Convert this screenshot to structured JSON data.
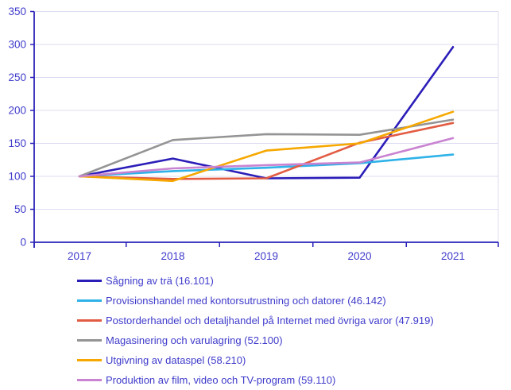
{
  "chart_data": {
    "type": "line",
    "title": "",
    "xlabel": "",
    "ylabel": "",
    "x_categories": [
      "2017",
      "2018",
      "2019",
      "2020",
      "2021"
    ],
    "y_ticks": [
      0,
      50,
      100,
      150,
      200,
      250,
      300,
      350
    ],
    "ylim": [
      0,
      350
    ],
    "grid": true,
    "legend_position": "bottom-left",
    "series": [
      {
        "name": "Sågning av trä (16.101)",
        "color": "#2b1db8",
        "values": [
          100,
          127,
          97,
          98,
          296
        ]
      },
      {
        "name": "Provisionshandel med kontorsutrustning och datorer (46.142)",
        "color": "#2fb2e8",
        "values": [
          100,
          108,
          113,
          120,
          133
        ]
      },
      {
        "name": "Postorderhandel och detaljhandel på Internet med övriga varor (47.919)",
        "color": "#e25c43",
        "values": [
          100,
          96,
          97,
          151,
          181
        ]
      },
      {
        "name": "Magasinering och varulagring (52.100)",
        "color": "#949494",
        "values": [
          100,
          155,
          164,
          163,
          186
        ]
      },
      {
        "name": "Utgivning av dataspel (58.210)",
        "color": "#f6a800",
        "values": [
          100,
          93,
          139,
          150,
          198
        ]
      },
      {
        "name": "Produktion av film, video och TV-program (59.110)",
        "color": "#c983d1",
        "values": [
          100,
          112,
          117,
          121,
          158
        ]
      }
    ],
    "colors": {
      "axis": "#2a22b8",
      "tick_label": "#3f3bcb",
      "legend_text": "#3f3bcb",
      "grid": "#dcdcf2",
      "background": "#ffffff"
    }
  }
}
